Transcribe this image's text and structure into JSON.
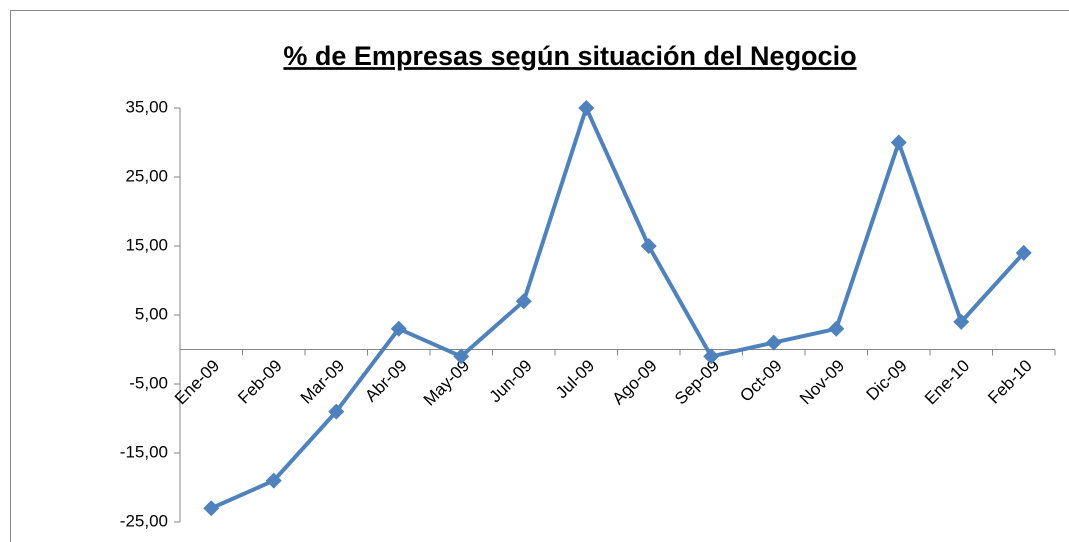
{
  "chart_data": {
    "type": "line",
    "title": "% de Empresas según situación del Negocio",
    "categories": [
      "Ene-09",
      "Feb-09",
      "Mar-09",
      "Abr-09",
      "May-09",
      "Jun-09",
      "Jul-09",
      "Ago-09",
      "Sep-09",
      "Oct-09",
      "Nov-09",
      "Dic-09",
      "Ene-10",
      "Feb-10"
    ],
    "values": [
      -23,
      -19,
      -9,
      3,
      -1,
      7,
      35,
      15,
      -1,
      1,
      3,
      30,
      4,
      14
    ],
    "color": "#4f81bd",
    "ylim": [
      -25,
      35
    ],
    "yticks": [
      {
        "value": -25,
        "label": "-25,00"
      },
      {
        "value": -15,
        "label": "-15,00"
      },
      {
        "value": -5,
        "label": "-5,00"
      },
      {
        "value": 5,
        "label": "5,00"
      },
      {
        "value": 15,
        "label": "15,00"
      },
      {
        "value": 25,
        "label": "25,00"
      },
      {
        "value": 35,
        "label": "35,00"
      }
    ],
    "grid": false
  }
}
